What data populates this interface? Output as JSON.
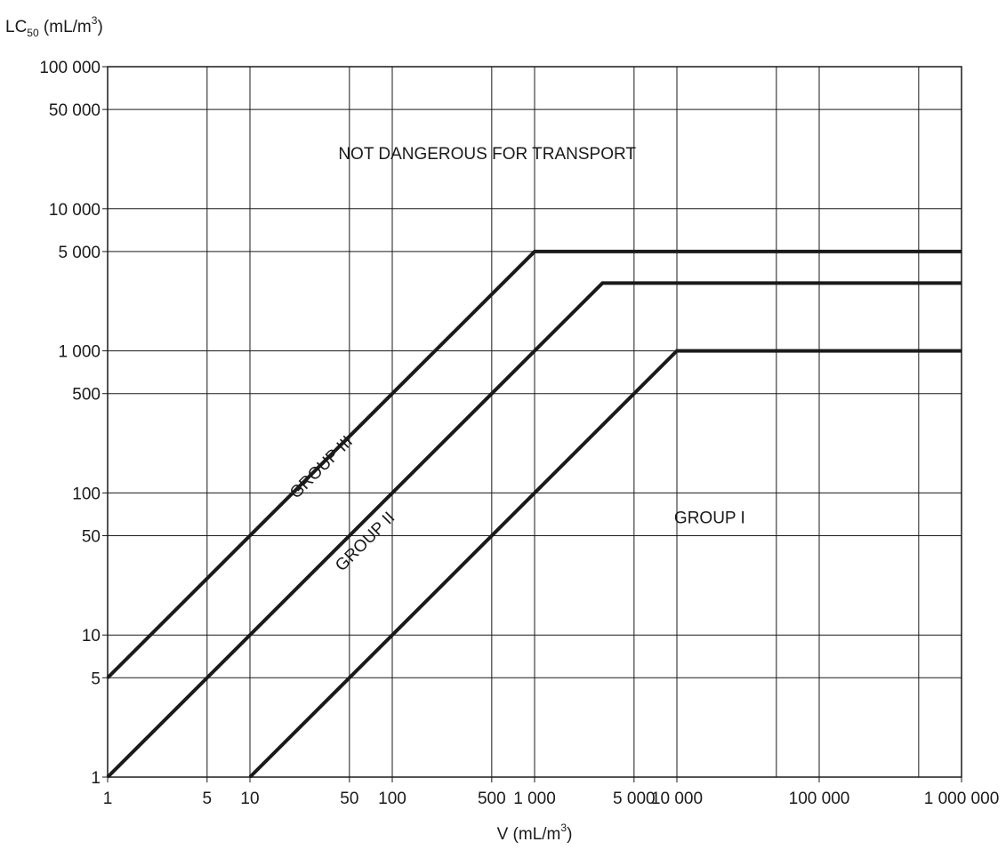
{
  "chart_data": {
    "type": "line",
    "x_scale": "log",
    "y_scale": "log",
    "xlim": [
      1,
      1000000
    ],
    "ylim": [
      1,
      100000
    ],
    "grid": true,
    "xlabel": {
      "main": "V (mL/m",
      "sup": "3",
      "close": ")"
    },
    "ylabel": {
      "main": "LC",
      "sub": "50",
      "mid": " (mL/m",
      "sup": "3",
      "close": ")"
    },
    "x_grid_values": [
      1,
      5,
      10,
      50,
      100,
      500,
      1000,
      5000,
      10000,
      50000,
      100000,
      500000,
      1000000
    ],
    "x_ticks": [
      {
        "value": 1,
        "label": "1"
      },
      {
        "value": 5,
        "label": "5"
      },
      {
        "value": 10,
        "label": "10"
      },
      {
        "value": 50,
        "label": "50"
      },
      {
        "value": 100,
        "label": "100"
      },
      {
        "value": 500,
        "label": "500"
      },
      {
        "value": 1000,
        "label": "1 000"
      },
      {
        "value": 5000,
        "label": "5 000"
      },
      {
        "value": 10000,
        "label": "10 000"
      },
      {
        "value": 100000,
        "label": "100 000"
      },
      {
        "value": 1000000,
        "label": "1 000 000"
      }
    ],
    "y_ticks": [
      {
        "value": 1,
        "label": "1"
      },
      {
        "value": 5,
        "label": "5"
      },
      {
        "value": 10,
        "label": "10"
      },
      {
        "value": 50,
        "label": "50"
      },
      {
        "value": 100,
        "label": "100"
      },
      {
        "value": 500,
        "label": "500"
      },
      {
        "value": 1000,
        "label": "1 000"
      },
      {
        "value": 5000,
        "label": "5 000"
      },
      {
        "value": 10000,
        "label": "10 000"
      },
      {
        "value": 50000,
        "label": "50 000"
      },
      {
        "value": 100000,
        "label": "100 000"
      }
    ],
    "series": [
      {
        "points": [
          [
            1,
            5
          ],
          [
            1000,
            5000
          ],
          [
            1000000,
            5000
          ]
        ]
      },
      {
        "points": [
          [
            1,
            1
          ],
          [
            3000,
            3000
          ],
          [
            1000000,
            3000
          ]
        ]
      },
      {
        "points": [
          [
            10,
            1
          ],
          [
            10000,
            1000
          ],
          [
            1000000,
            1000
          ]
        ]
      }
    ],
    "annotations": [
      {
        "text": "NOT DANGEROUS FOR TRANSPORT",
        "x": 464,
        "y": 24000,
        "angle": 0
      },
      {
        "text": "GROUP III",
        "x": 32,
        "y": 150,
        "angle": -45
      },
      {
        "text": "GROUP II",
        "x": 65,
        "y": 45,
        "angle": -45
      },
      {
        "text": "GROUP I",
        "x": 17000,
        "y": 66,
        "angle": 0
      }
    ]
  }
}
